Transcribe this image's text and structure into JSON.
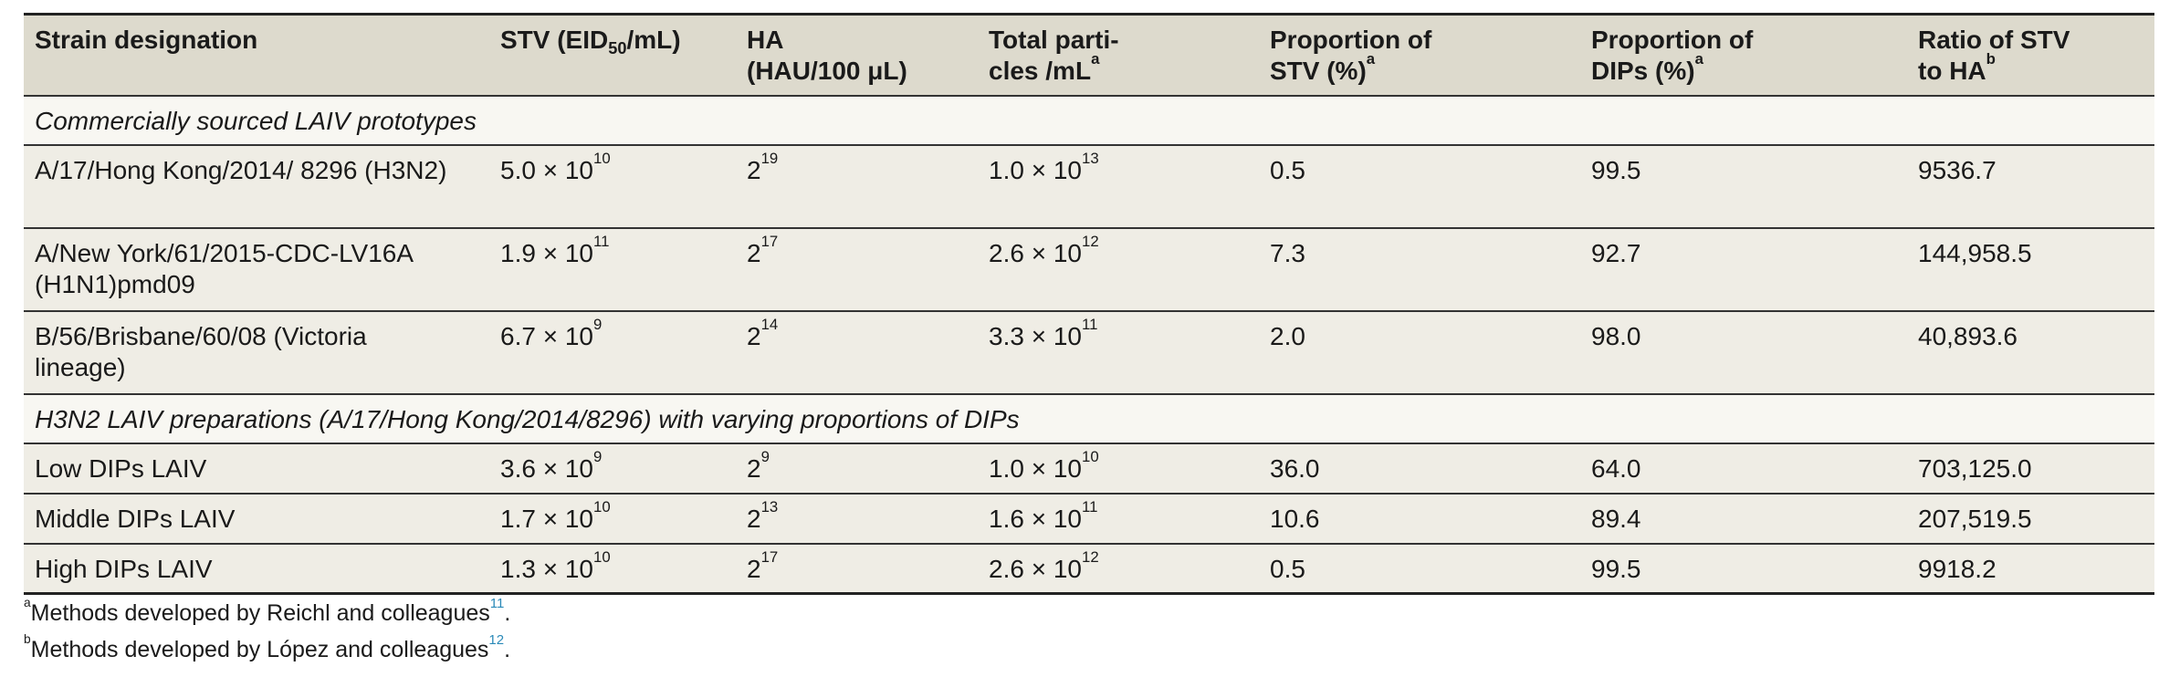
{
  "headers": [
    {
      "text": "Strain designation"
    },
    {
      "pre": "STV (EID",
      "sub": "50",
      "post": "/mL)"
    },
    {
      "line1": "HA",
      "line2": "(HAU/100 μL)"
    },
    {
      "line1": "Total parti-",
      "line2": "cles /mL",
      "sup": "a"
    },
    {
      "line1": "Proportion of",
      "line2": "STV (%)",
      "sup": "a"
    },
    {
      "line1": "Proportion of",
      "line2": "DIPs (%)",
      "sup": "a"
    },
    {
      "line1": "Ratio of STV",
      "line2": "to HA",
      "sup": "b"
    }
  ],
  "sections": [
    {
      "title": "Commercially sourced LAIV prototypes",
      "rows": [
        {
          "strain": "A/17/Hong Kong/2014/ 8296 (H3N2)",
          "stv": {
            "base": "5.0 × 10",
            "exp": "10"
          },
          "ha": {
            "base": "2",
            "exp": "19"
          },
          "total": {
            "base": "1.0 × 10",
            "exp": "13"
          },
          "prop_stv": "0.5",
          "prop_dips": "99.5",
          "ratio": "9536.7"
        },
        {
          "strain": "A/New York/61/2015-CDC-LV16A (H1N1)pmd09",
          "stv": {
            "base": "1.9 × 10",
            "exp": "11"
          },
          "ha": {
            "base": "2",
            "exp": "17"
          },
          "total": {
            "base": "2.6 × 10",
            "exp": "12"
          },
          "prop_stv": "7.3",
          "prop_dips": "92.7",
          "ratio": "144,958.5"
        },
        {
          "strain": "B/56/Brisbane/60/08 (Victoria lineage)",
          "stv": {
            "base": "6.7 × 10",
            "exp": "9"
          },
          "ha": {
            "base": "2",
            "exp": "14"
          },
          "total": {
            "base": "3.3 × 10",
            "exp": "11"
          },
          "prop_stv": "2.0",
          "prop_dips": "98.0",
          "ratio": "40,893.6"
        }
      ]
    },
    {
      "title": "H3N2 LAIV preparations (A/17/Hong Kong/2014/8296) with varying proportions of DIPs",
      "rows": [
        {
          "strain": "Low DIPs LAIV",
          "stv": {
            "base": "3.6 × 10",
            "exp": "9"
          },
          "ha": {
            "base": "2",
            "exp": "9"
          },
          "total": {
            "base": "1.0 × 10",
            "exp": "10"
          },
          "prop_stv": "36.0",
          "prop_dips": "64.0",
          "ratio": "703,125.0"
        },
        {
          "strain": "Middle DIPs LAIV",
          "stv": {
            "base": "1.7 × 10",
            "exp": "10"
          },
          "ha": {
            "base": "2",
            "exp": "13"
          },
          "total": {
            "base": "1.6 × 10",
            "exp": "11"
          },
          "prop_stv": "10.6",
          "prop_dips": "89.4",
          "ratio": "207,519.5"
        },
        {
          "strain": "High DIPs LAIV",
          "stv": {
            "base": "1.3 × 10",
            "exp": "10"
          },
          "ha": {
            "base": "2",
            "exp": "17"
          },
          "total": {
            "base": "2.6 × 10",
            "exp": "12"
          },
          "prop_stv": "0.5",
          "prop_dips": "99.5",
          "ratio": "9918.2"
        }
      ]
    }
  ],
  "footnotes": [
    {
      "mark": "a",
      "text": "Methods developed by Reichl and colleagues",
      "ref": "11",
      "end": "."
    },
    {
      "mark": "b",
      "text": "Methods developed by López and colleagues",
      "ref": "12",
      "end": "."
    }
  ],
  "colors": {
    "header_bg": "#dddacd",
    "row_bg": "#efede5",
    "section_bg": "#f8f7f2",
    "ref_link": "#2b8ab8"
  }
}
